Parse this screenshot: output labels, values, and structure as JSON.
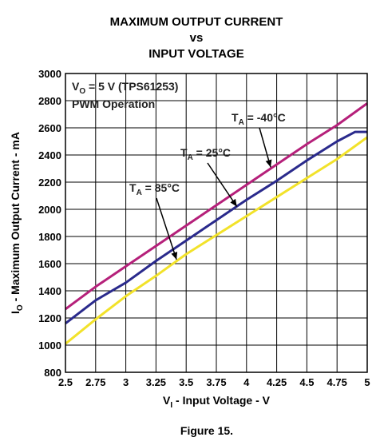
{
  "chart_data": {
    "type": "line",
    "title": [
      "MAXIMUM OUTPUT CURRENT",
      "vs",
      "INPUT VOLTAGE"
    ],
    "xlabel": {
      "main": "V",
      "sub": "I",
      "rest": " - Input Voltage - V"
    },
    "ylabel": {
      "main": "I",
      "sub": "O",
      "rest": " - Maximum Output Current - mA"
    },
    "xlim": [
      2.5,
      5
    ],
    "ylim": [
      800,
      3000
    ],
    "xticks": [
      "2.5",
      "2.75",
      "3",
      "3.25",
      "3.5",
      "3.75",
      "4",
      "4.25",
      "4.5",
      "4.75",
      "5"
    ],
    "yticks": [
      "800",
      "1000",
      "1200",
      "1400",
      "1600",
      "1800",
      "2000",
      "2200",
      "2400",
      "2600",
      "2800",
      "3000"
    ],
    "grid": true,
    "annotations": [
      {
        "lines": [
          {
            "main": "V",
            "sub": "O",
            "rest": " = 5 V (TPS61253)"
          },
          {
            "main": "PWM Operation"
          }
        ]
      }
    ],
    "series": [
      {
        "name": {
          "main": "T",
          "sub": "A",
          "rest": " = -40°C"
        },
        "color": "#b5207a",
        "x": [
          2.5,
          2.75,
          3.0,
          3.25,
          3.5,
          3.75,
          4.0,
          4.25,
          4.5,
          4.75,
          5.0
        ],
        "y": [
          1265,
          1430,
          1580,
          1730,
          1880,
          2030,
          2180,
          2330,
          2480,
          2620,
          2780
        ]
      },
      {
        "name": {
          "main": "T",
          "sub": "A",
          "rest": " = 25°C"
        },
        "color": "#2a2a8c",
        "x": [
          2.5,
          2.75,
          3.0,
          3.25,
          3.5,
          3.75,
          4.0,
          4.25,
          4.5,
          4.75,
          4.9,
          5.0
        ],
        "y": [
          1160,
          1330,
          1460,
          1620,
          1770,
          1920,
          2070,
          2210,
          2360,
          2500,
          2570,
          2570
        ]
      },
      {
        "name": {
          "main": "T",
          "sub": "A",
          "rest": " = 85°C"
        },
        "color": "#f2e22a",
        "x": [
          2.5,
          2.75,
          3.0,
          3.25,
          3.5,
          3.75,
          4.0,
          4.25,
          4.5,
          4.75,
          5.0
        ],
        "y": [
          1010,
          1190,
          1360,
          1510,
          1670,
          1810,
          1950,
          2090,
          2230,
          2370,
          2530
        ]
      }
    ],
    "footer": "Figure 15."
  }
}
